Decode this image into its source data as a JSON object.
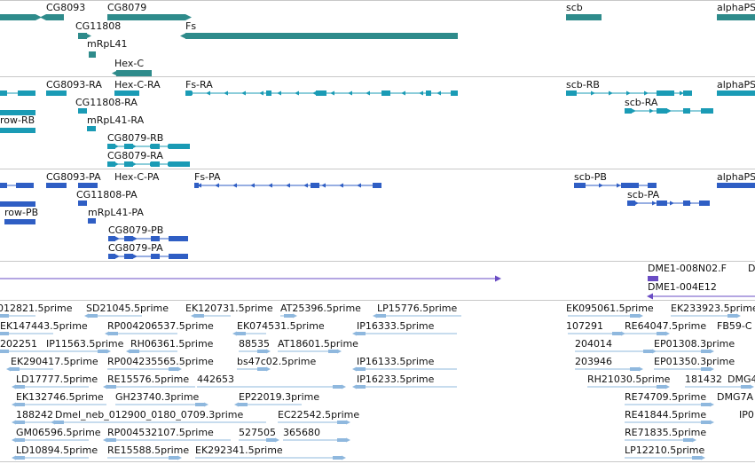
{
  "colors": {
    "gene": "#2e8b8b",
    "transcript": "#1a9bb5",
    "protein": "#2f5ec4",
    "est_line": "#6a4cc4",
    "est": "#8fb8de",
    "border": "#c8c8c8"
  },
  "tracks": [
    {
      "name": "gene-track",
      "labels": [
        "CG8093",
        "CG8079",
        "scb",
        "alphaPS",
        "CG11808",
        "Fs",
        "mRpL41",
        "Hex-C"
      ]
    },
    {
      "name": "transcript-track",
      "labels": [
        "CG8093-RA",
        "Hex-C-RA",
        "Fs-RA",
        "scb-RB",
        "alphaPS",
        "row-RB",
        "CG11808-RA",
        "scb-RA",
        "mRpL41-RA",
        "CG8079-RB",
        "CG8079-RA"
      ]
    },
    {
      "name": "protein-track",
      "labels": [
        "CG8093-PA",
        "Hex-C-PA",
        "Fs-PA",
        "scb-PB",
        "alphaPS",
        "CG11808-PA",
        "scb-PA",
        "row-PB",
        "mRpL41-PA",
        "CG8079-PB",
        "CG8079-PA"
      ]
    },
    {
      "name": "clone-track",
      "labels": [
        "DME1-008N02.F",
        "D",
        "DME1-004E12"
      ]
    },
    {
      "name": "est-track",
      "labels": [
        "012821.5prime",
        "SD21045.5prime",
        "EK120731.5prime",
        "AT25396.5prime",
        "LP15776.5prime",
        "EK095061.5prime",
        "EK233923.5prime",
        "EK147443.5prime",
        "RP004206537.5prime",
        "EK074531.5prime",
        "IP16333.5prime",
        "107291",
        "RE64047.5prime",
        "FB59-C",
        "202251",
        "IP11563.5prime",
        "RH06361.5prime",
        "88535",
        "AT18601.5prime",
        "204014",
        "EP01308.3prime",
        "EK290417.5prime",
        "RP004235565.5prime",
        "bs47c02.5prime",
        "IP16133.5prime",
        "203946",
        "EP01350.3prime",
        "LD17777.5prime",
        "RE15576.5prime",
        "442653",
        "IP16233.5prime",
        "RH21030.5prime",
        "181432",
        "DMG4",
        "EK132746.5prime",
        "GH23740.3prime",
        "EP22019.3prime",
        "RE74709.5prime",
        "DMG7A",
        "188242",
        "Dmel_neb_012900_0180_0709.3prime",
        "EC22542.5prime",
        "RE41844.5prime",
        "IP0",
        "GM06596.5prime",
        "RP004532107.5prime",
        "527505",
        "365680",
        "RE71835.5prime",
        "LD10894.5prime",
        "RE15588.5prime",
        "EK292341.5prime",
        "LP12210.5prime"
      ]
    }
  ]
}
